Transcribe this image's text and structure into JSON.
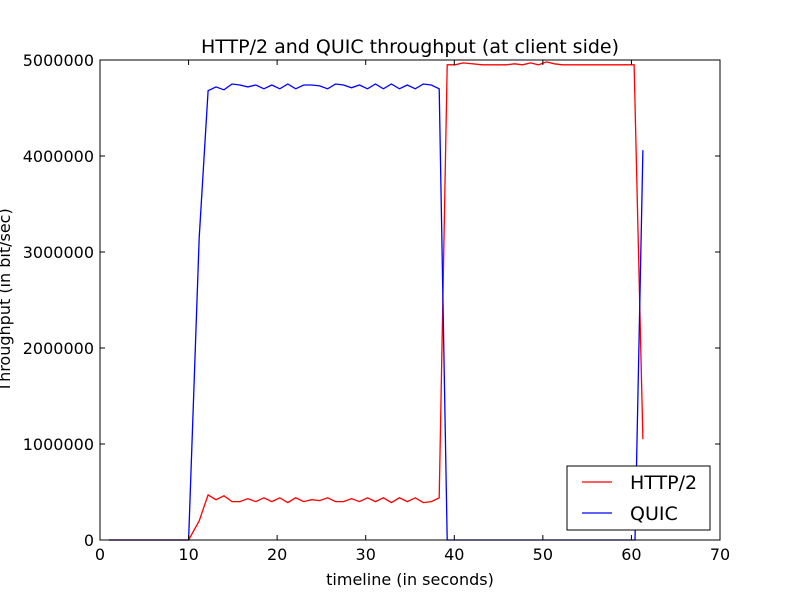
{
  "chart_data": {
    "type": "line",
    "title": "HTTP/2 and QUIC throughput (at client side)",
    "xlabel": "timeline (in seconds)",
    "ylabel": "Throughput (in bit/sec)",
    "xlim": [
      0,
      70
    ],
    "ylim": [
      0,
      5000000
    ],
    "xticks": [
      0,
      10,
      20,
      30,
      40,
      50,
      60,
      70
    ],
    "yticks": [
      0,
      1000000,
      2000000,
      3000000,
      4000000,
      5000000
    ],
    "xtick_labels": [
      "0",
      "10",
      "20",
      "30",
      "40",
      "50",
      "60",
      "70"
    ],
    "ytick_labels": [
      "0",
      "1000000",
      "2000000",
      "3000000",
      "4000000",
      "5000000"
    ],
    "grid": false,
    "legend_position": "bottom-right",
    "series": [
      {
        "name": "HTTP/2",
        "color": "#ff0000",
        "x": [
          1,
          3,
          5,
          7,
          9,
          10,
          11.2,
          12.2,
          13.1,
          14,
          14.9,
          15.8,
          16.7,
          17.6,
          18.5,
          19.4,
          20.3,
          21.2,
          22.1,
          23,
          23.9,
          24.8,
          25.7,
          26.6,
          27.5,
          28.4,
          29.3,
          30.2,
          31.1,
          32,
          32.9,
          33.8,
          34.7,
          35.6,
          36.5,
          37.4,
          38.3,
          39.2,
          40.1,
          41,
          43.2,
          44.1,
          45,
          45.9,
          46.8,
          47.7,
          48.6,
          49.5,
          50.4,
          51.3,
          52.2,
          53.1,
          54,
          54.9,
          55.8,
          56.7,
          57.6,
          58.5,
          59.4,
          60.3,
          61.3
        ],
        "y": [
          0,
          0,
          0,
          0,
          0,
          0,
          200000,
          470000,
          420000,
          460000,
          400000,
          400000,
          430000,
          400000,
          440000,
          400000,
          440000,
          390000,
          440000,
          400000,
          420000,
          410000,
          440000,
          400000,
          400000,
          430000,
          400000,
          440000,
          400000,
          440000,
          390000,
          440000,
          400000,
          440000,
          390000,
          400000,
          440000,
          4950000,
          4950000,
          4970000,
          4950000,
          4950000,
          4950000,
          4950000,
          4960000,
          4950000,
          4970000,
          4950000,
          4980000,
          4960000,
          4950000,
          4950000,
          4950000,
          4950000,
          4950000,
          4950000,
          4950000,
          4950000,
          4950000,
          4950000,
          1050000
        ]
      },
      {
        "name": "QUIC",
        "color": "#0000ff",
        "x": [
          1,
          3,
          5,
          7,
          9,
          10,
          11.2,
          12.2,
          13.1,
          14,
          14.9,
          15.8,
          16.7,
          17.6,
          18.5,
          19.4,
          20.3,
          21.2,
          22.1,
          23,
          23.9,
          24.8,
          25.7,
          26.6,
          27.5,
          28.4,
          29.3,
          30.2,
          31.1,
          32,
          32.9,
          33.8,
          34.7,
          35.6,
          36.5,
          37.4,
          38.3,
          39.2,
          40.1,
          41,
          43.2,
          45,
          47,
          49,
          51,
          53,
          55,
          57,
          59,
          60.4,
          61.3
        ],
        "y": [
          0,
          0,
          0,
          0,
          0,
          0,
          3150000,
          4680000,
          4720000,
          4690000,
          4750000,
          4740000,
          4720000,
          4740000,
          4700000,
          4740000,
          4700000,
          4750000,
          4700000,
          4740000,
          4740000,
          4730000,
          4700000,
          4750000,
          4740000,
          4710000,
          4740000,
          4700000,
          4750000,
          4700000,
          4750000,
          4700000,
          4740000,
          4700000,
          4750000,
          4740000,
          4700000,
          0,
          0,
          0,
          0,
          0,
          0,
          0,
          0,
          0,
          0,
          0,
          0,
          0,
          4060000
        ]
      }
    ]
  }
}
